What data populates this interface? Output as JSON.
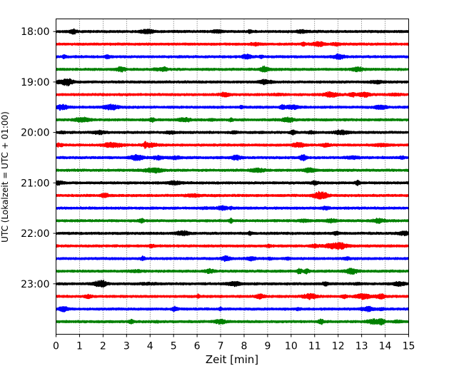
{
  "chart_data": {
    "type": "line",
    "title": "",
    "xlabel": "Zeit  [min]",
    "ylabel": "UTC (Lokalzeit = UTC + 01:00)",
    "xlim": [
      0,
      15
    ],
    "x_ticks": [
      0,
      1,
      2,
      3,
      4,
      5,
      6,
      7,
      8,
      9,
      10,
      11,
      12,
      13,
      14,
      15
    ],
    "x_tick_labels": [
      "0",
      "1",
      "2",
      "3",
      "4",
      "5",
      "6",
      "7",
      "8",
      "9",
      "10",
      "11",
      "12",
      "13",
      "14",
      "15"
    ],
    "y_range": [
      "17:45",
      "24:00"
    ],
    "y_tick_labels": [
      "18:00",
      "19:00",
      "20:00",
      "21:00",
      "22:00",
      "23:00"
    ],
    "grid": "vertical dotted at each minute",
    "legend": "none",
    "trace_duration_min": 15,
    "trace_colors": [
      "#000000",
      "#ff0000",
      "#0000ff",
      "#008000"
    ],
    "traces": [
      {
        "start": "18:00",
        "color": "#000000"
      },
      {
        "start": "18:15",
        "color": "#ff0000"
      },
      {
        "start": "18:30",
        "color": "#0000ff"
      },
      {
        "start": "18:45",
        "color": "#008000"
      },
      {
        "start": "19:00",
        "color": "#000000"
      },
      {
        "start": "19:15",
        "color": "#ff0000"
      },
      {
        "start": "19:30",
        "color": "#0000ff"
      },
      {
        "start": "19:45",
        "color": "#008000"
      },
      {
        "start": "20:00",
        "color": "#000000"
      },
      {
        "start": "20:15",
        "color": "#ff0000"
      },
      {
        "start": "20:30",
        "color": "#0000ff"
      },
      {
        "start": "20:45",
        "color": "#008000"
      },
      {
        "start": "21:00",
        "color": "#000000"
      },
      {
        "start": "21:15",
        "color": "#ff0000"
      },
      {
        "start": "21:30",
        "color": "#0000ff"
      },
      {
        "start": "21:45",
        "color": "#008000"
      },
      {
        "start": "22:00",
        "color": "#000000"
      },
      {
        "start": "22:15",
        "color": "#ff0000"
      },
      {
        "start": "22:30",
        "color": "#0000ff"
      },
      {
        "start": "22:45",
        "color": "#008000"
      },
      {
        "start": "23:00",
        "color": "#000000"
      },
      {
        "start": "23:15",
        "color": "#ff0000"
      },
      {
        "start": "23:30",
        "color": "#0000ff"
      },
      {
        "start": "23:45",
        "color": "#008000"
      }
    ]
  }
}
